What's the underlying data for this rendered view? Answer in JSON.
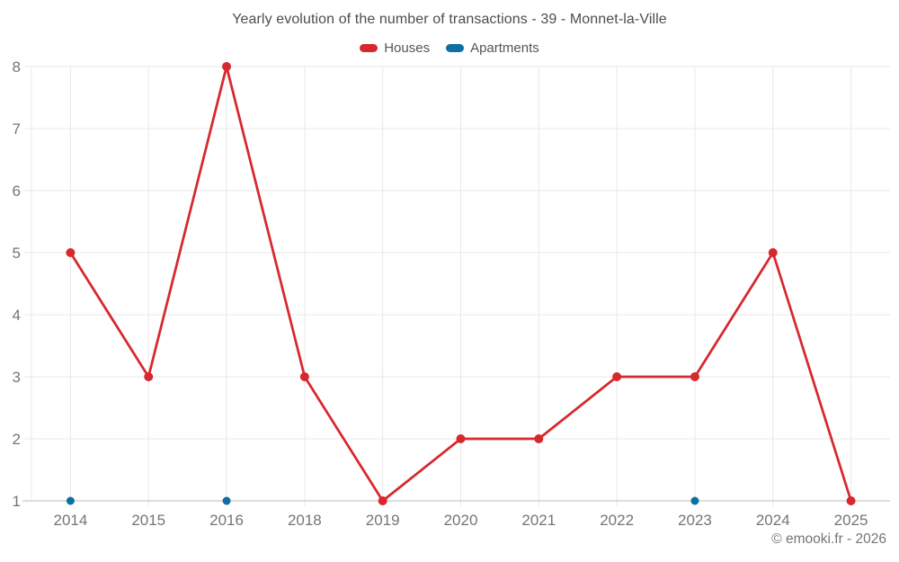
{
  "title": "Yearly evolution of the number of transactions - 39 - Monnet-la-Ville",
  "copyright": "© emooki.fr - 2026",
  "legend": {
    "items": [
      {
        "label": "Houses",
        "color": "#d7282d"
      },
      {
        "label": "Apartments",
        "color": "#0e6fa4"
      }
    ]
  },
  "chart_data": {
    "type": "line",
    "title": "Yearly evolution of the number of transactions - 39 - Monnet-la-Ville",
    "categories": [
      "2014",
      "2015",
      "2016",
      "2018",
      "2019",
      "2020",
      "2021",
      "2022",
      "2023",
      "2024",
      "2025"
    ],
    "series": [
      {
        "name": "Houses",
        "color": "#d7282d",
        "show_line": true,
        "marker_radius": 5,
        "values": [
          5,
          3,
          8,
          3,
          1,
          2,
          2,
          3,
          3,
          5,
          1
        ]
      },
      {
        "name": "Apartments",
        "color": "#0e6fa4",
        "show_line": false,
        "marker_radius": 4.5,
        "values": [
          1,
          null,
          1,
          null,
          null,
          null,
          null,
          null,
          1,
          null,
          null
        ]
      }
    ],
    "xlabel": "",
    "ylabel": "",
    "ylim": [
      1,
      8
    ],
    "yticks": [
      1,
      2,
      3,
      4,
      5,
      6,
      7,
      8
    ],
    "grid": true,
    "legend_position": "top",
    "grid_color": "#e9e9e9",
    "axis_color": "#c9c9c9",
    "label_color": "#757575",
    "line_width": 2.75
  }
}
